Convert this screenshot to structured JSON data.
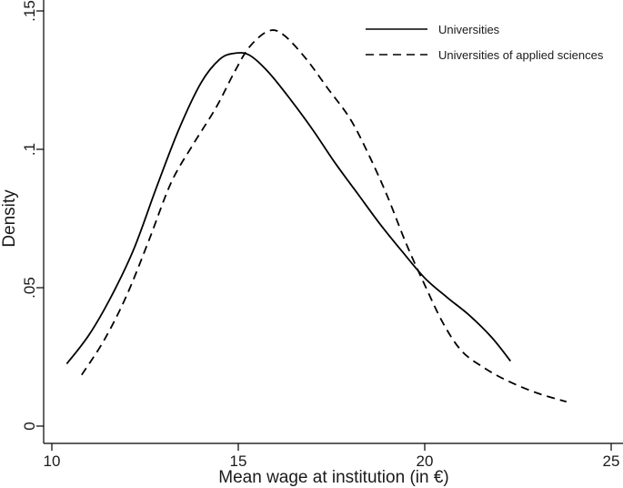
{
  "chart_data": {
    "type": "line",
    "xlabel": "Mean wage at institution (in €)",
    "ylabel": "Density",
    "xlim": [
      10,
      25
    ],
    "ylim": [
      0,
      0.15
    ],
    "x_ticks": [
      10,
      15,
      20,
      25
    ],
    "x_tick_labels": [
      "10",
      "15",
      "20",
      "25"
    ],
    "y_ticks": [
      0,
      0.05,
      0.1,
      0.15
    ],
    "y_tick_labels": [
      "0",
      ".05",
      ".1",
      ".15"
    ],
    "grid": false,
    "legend_position": "top-right",
    "series": [
      {
        "name": "Universities",
        "style": "solid",
        "color": "#000000",
        "points": [
          [
            10.4,
            0.0225
          ],
          [
            11.0,
            0.033
          ],
          [
            11.6,
            0.047
          ],
          [
            12.2,
            0.064
          ],
          [
            12.8,
            0.086
          ],
          [
            13.4,
            0.107
          ],
          [
            14.0,
            0.124
          ],
          [
            14.5,
            0.1325
          ],
          [
            14.9,
            0.1347
          ],
          [
            15.3,
            0.134
          ],
          [
            15.8,
            0.128
          ],
          [
            16.4,
            0.118
          ],
          [
            17.0,
            0.107
          ],
          [
            17.6,
            0.095
          ],
          [
            18.2,
            0.084
          ],
          [
            18.8,
            0.073
          ],
          [
            19.4,
            0.063
          ],
          [
            20.0,
            0.0535
          ],
          [
            20.6,
            0.0465
          ],
          [
            21.2,
            0.04
          ],
          [
            21.8,
            0.032
          ],
          [
            22.3,
            0.0235
          ]
        ]
      },
      {
        "name": "Universities of applied sciences",
        "style": "dashed",
        "color": "#000000",
        "points": [
          [
            10.8,
            0.0185
          ],
          [
            11.4,
            0.031
          ],
          [
            12.0,
            0.047
          ],
          [
            12.6,
            0.067
          ],
          [
            13.2,
            0.088
          ],
          [
            13.8,
            0.102
          ],
          [
            14.4,
            0.115
          ],
          [
            14.9,
            0.128
          ],
          [
            15.3,
            0.137
          ],
          [
            15.8,
            0.1427
          ],
          [
            16.2,
            0.1415
          ],
          [
            16.8,
            0.133
          ],
          [
            17.4,
            0.122
          ],
          [
            18.0,
            0.111
          ],
          [
            18.5,
            0.098
          ],
          [
            19.0,
            0.083
          ],
          [
            19.5,
            0.066
          ],
          [
            20.0,
            0.051
          ],
          [
            20.5,
            0.037
          ],
          [
            21.0,
            0.027
          ],
          [
            21.6,
            0.021
          ],
          [
            22.2,
            0.0165
          ],
          [
            23.0,
            0.012
          ],
          [
            23.8,
            0.0088
          ]
        ]
      }
    ]
  }
}
